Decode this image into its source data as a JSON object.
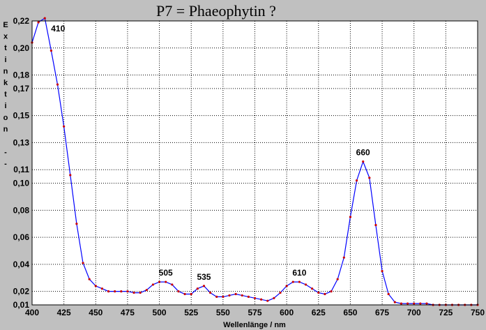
{
  "chart_data": {
    "type": "line",
    "title": "P7 = Phaeophytin ?",
    "xlabel": "Wellenlänge / nm",
    "ylabel": "Extinktion --",
    "xlim": [
      400,
      750
    ],
    "ylim": [
      0.01,
      0.22
    ],
    "x_ticks": [
      400,
      425,
      450,
      475,
      500,
      525,
      550,
      575,
      600,
      625,
      650,
      675,
      700,
      725,
      750
    ],
    "y_ticks": [
      {
        "value": 0.22,
        "label": "0,22"
      },
      {
        "value": 0.2,
        "label": "0,20"
      },
      {
        "value": 0.18,
        "label": "0,18"
      },
      {
        "value": 0.17,
        "label": "0,17"
      },
      {
        "value": 0.15,
        "label": "0,15"
      },
      {
        "value": 0.13,
        "label": "0,13"
      },
      {
        "value": 0.11,
        "label": "0,11"
      },
      {
        "value": 0.1,
        "label": "0,10"
      },
      {
        "value": 0.08,
        "label": "0,08"
      },
      {
        "value": 0.06,
        "label": "0,06"
      },
      {
        "value": 0.04,
        "label": "0,04"
      },
      {
        "value": 0.02,
        "label": "0,02"
      },
      {
        "value": 0.01,
        "label": "0,01"
      }
    ],
    "grid": true,
    "colors": {
      "line": "#0000ff",
      "marker": "#cc0000",
      "grid": "#000000",
      "plot_bg": "#ffffff",
      "frame_bg": "#c0c0c0"
    },
    "series": [
      {
        "x": [
          400,
          405,
          410,
          415,
          420,
          425,
          430,
          435,
          440,
          445,
          450,
          455,
          460,
          465,
          470,
          475,
          480,
          485,
          490,
          495,
          500,
          505,
          510,
          515,
          520,
          525,
          530,
          535,
          540,
          545,
          550,
          555,
          560,
          565,
          570,
          575,
          580,
          585,
          590,
          595,
          600,
          605,
          610,
          615,
          620,
          625,
          630,
          635,
          640,
          645,
          650,
          655,
          660,
          665,
          670,
          675,
          680,
          685,
          690,
          695,
          700,
          705,
          710,
          715,
          720,
          725,
          730,
          735,
          740,
          745,
          750
        ],
        "y": [
          0.204,
          0.219,
          0.222,
          0.198,
          0.173,
          0.142,
          0.106,
          0.07,
          0.041,
          0.029,
          0.024,
          0.022,
          0.02,
          0.02,
          0.02,
          0.02,
          0.019,
          0.019,
          0.021,
          0.025,
          0.027,
          0.027,
          0.025,
          0.02,
          0.018,
          0.018,
          0.022,
          0.024,
          0.019,
          0.016,
          0.016,
          0.017,
          0.018,
          0.017,
          0.016,
          0.015,
          0.014,
          0.013,
          0.015,
          0.019,
          0.024,
          0.027,
          0.027,
          0.025,
          0.022,
          0.019,
          0.018,
          0.02,
          0.029,
          0.045,
          0.075,
          0.102,
          0.116,
          0.104,
          0.069,
          0.035,
          0.018,
          0.012,
          0.011,
          0.011,
          0.011,
          0.011,
          0.011,
          0.01,
          0.01,
          0.01,
          0.01,
          0.01,
          0.01,
          0.01,
          0.01
        ]
      }
    ],
    "annotations": [
      {
        "text": "410",
        "x": 410,
        "y": 0.222
      },
      {
        "text": "505",
        "x": 505,
        "y": 0.027
      },
      {
        "text": "535",
        "x": 535,
        "y": 0.024
      },
      {
        "text": "610",
        "x": 610,
        "y": 0.027
      },
      {
        "text": "660",
        "x": 660,
        "y": 0.116
      }
    ]
  }
}
